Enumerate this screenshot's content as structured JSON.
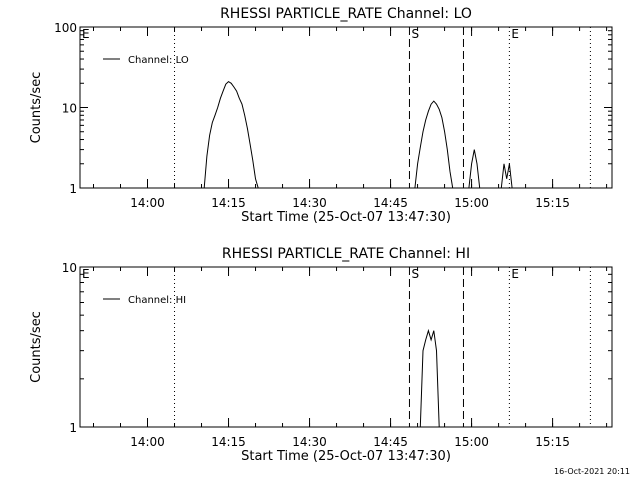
{
  "footer": {
    "timestamp": "16-Oct-2021 20:11"
  },
  "chart_data": [
    {
      "type": "line",
      "title": "RHESSI PARTICLE_RATE Channel: LO",
      "xlabel": "Start Time (25-Oct-07 13:47:30)",
      "ylabel": "Counts/sec",
      "yscale": "log",
      "xlim": [
        "13:47:30",
        "15:26:00"
      ],
      "ylim": [
        1,
        100
      ],
      "x_ticks": [
        "14:00",
        "14:15",
        "14:30",
        "14:45",
        "15:00",
        "15:15"
      ],
      "y_ticks": [
        {
          "value": 1,
          "label": "1"
        },
        {
          "value": 10,
          "label": "10"
        },
        {
          "value": 100,
          "label": "100"
        }
      ],
      "legend": {
        "position": "top-left",
        "entries": [
          "Channel: LO"
        ]
      },
      "markers": [
        {
          "time": "13:47:30",
          "label": "E",
          "style": "dotted"
        },
        {
          "time": "14:05:00",
          "label": "",
          "style": "dotted"
        },
        {
          "time": "14:48:30",
          "label": "S",
          "style": "dashed"
        },
        {
          "time": "14:58:30",
          "label": "",
          "style": "dashed"
        },
        {
          "time": "15:07:00",
          "label": "E",
          "style": "dotted"
        },
        {
          "time": "15:22:00",
          "label": "",
          "style": "dotted"
        }
      ],
      "series": [
        {
          "name": "Channel: LO",
          "points": [
            [
              "14:10:30",
              1
            ],
            [
              "14:11:00",
              2.5
            ],
            [
              "14:11:30",
              4.5
            ],
            [
              "14:12:00",
              6.5
            ],
            [
              "14:12:30",
              8
            ],
            [
              "14:13:00",
              10
            ],
            [
              "14:13:30",
              13
            ],
            [
              "14:14:00",
              16
            ],
            [
              "14:14:30",
              19.5
            ],
            [
              "14:15:00",
              21
            ],
            [
              "14:15:30",
              20
            ],
            [
              "14:16:00",
              18
            ],
            [
              "14:16:30",
              16
            ],
            [
              "14:17:00",
              13
            ],
            [
              "14:17:30",
              11
            ],
            [
              "14:18:00",
              8
            ],
            [
              "14:18:30",
              5.5
            ],
            [
              "14:19:00",
              3.5
            ],
            [
              "14:19:30",
              2.2
            ],
            [
              "14:20:00",
              1.3
            ],
            [
              "14:20:30",
              1
            ],
            [
              "14:49:30",
              1
            ],
            [
              "14:50:00",
              2
            ],
            [
              "14:50:30",
              3.2
            ],
            [
              "14:51:00",
              5
            ],
            [
              "14:51:30",
              7
            ],
            [
              "14:52:00",
              9
            ],
            [
              "14:52:30",
              11
            ],
            [
              "14:53:00",
              12
            ],
            [
              "14:53:30",
              11
            ],
            [
              "14:54:00",
              9.5
            ],
            [
              "14:54:30",
              7.5
            ],
            [
              "14:55:00",
              5
            ],
            [
              "14:55:30",
              3
            ],
            [
              "14:56:00",
              1.6
            ],
            [
              "14:56:30",
              1
            ],
            [
              "14:59:30",
              1
            ],
            [
              "15:00:00",
              2
            ],
            [
              "15:00:30",
              3
            ],
            [
              "15:01:00",
              2
            ],
            [
              "15:01:30",
              1
            ],
            [
              "15:05:30",
              1
            ],
            [
              "15:06:00",
              2
            ],
            [
              "15:06:30",
              1.3
            ],
            [
              "15:07:00",
              2
            ],
            [
              "15:07:30",
              1
            ]
          ]
        }
      ]
    },
    {
      "type": "line",
      "title": "RHESSI PARTICLE_RATE Channel: HI",
      "xlabel": "Start Time (25-Oct-07 13:47:30)",
      "ylabel": "Counts/sec",
      "yscale": "log",
      "xlim": [
        "13:47:30",
        "15:26:00"
      ],
      "ylim": [
        1,
        10
      ],
      "x_ticks": [
        "14:00",
        "14:15",
        "14:30",
        "14:45",
        "15:00",
        "15:15"
      ],
      "y_ticks": [
        {
          "value": 1,
          "label": "1"
        },
        {
          "value": 10,
          "label": "10"
        }
      ],
      "legend": {
        "position": "top-left",
        "entries": [
          "Channel: HI"
        ]
      },
      "markers": [
        {
          "time": "13:47:30",
          "label": "E",
          "style": "dotted"
        },
        {
          "time": "14:05:00",
          "label": "",
          "style": "dotted"
        },
        {
          "time": "14:48:30",
          "label": "S",
          "style": "dashed"
        },
        {
          "time": "14:58:30",
          "label": "",
          "style": "dashed"
        },
        {
          "time": "15:07:00",
          "label": "E",
          "style": "dotted"
        },
        {
          "time": "15:22:00",
          "label": "",
          "style": "dotted"
        }
      ],
      "series": [
        {
          "name": "Channel: HI",
          "points": [
            [
              "14:50:30",
              1
            ],
            [
              "14:51:00",
              3
            ],
            [
              "14:51:30",
              3.5
            ],
            [
              "14:52:00",
              4
            ],
            [
              "14:52:30",
              3.5
            ],
            [
              "14:53:00",
              4
            ],
            [
              "14:53:30",
              3
            ],
            [
              "14:54:00",
              1
            ]
          ]
        }
      ]
    }
  ]
}
